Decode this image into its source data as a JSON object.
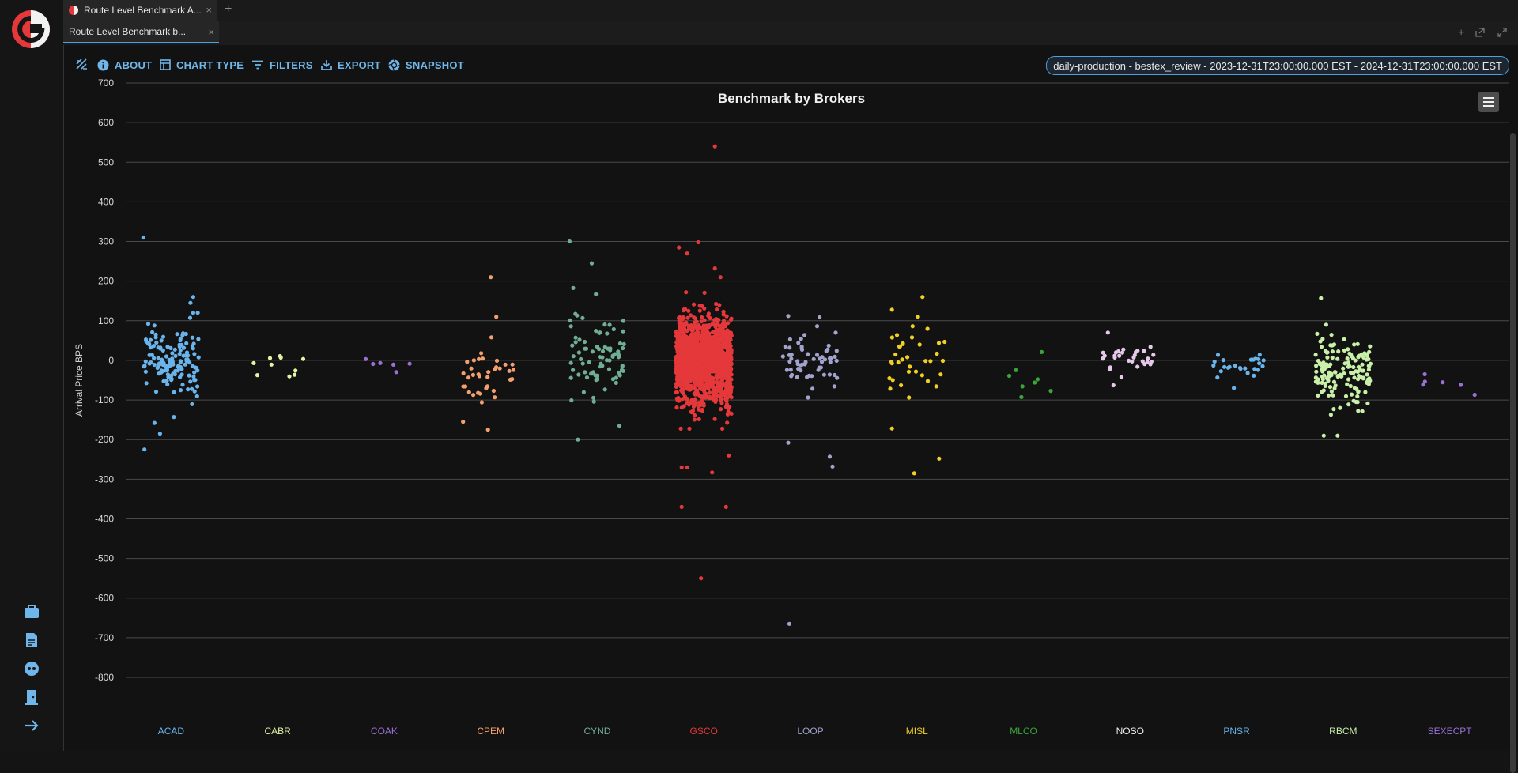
{
  "window": {
    "tab_title": "Route Level Benchmark A...",
    "subtab_title": "Route Level Benchmark b...",
    "close_glyph": "×",
    "add_glyph": "+"
  },
  "toolbar": {
    "about_label": "ABOUT",
    "chart_type_label": "CHART TYPE",
    "filters_label": "FILTERS",
    "export_label": "EXPORT",
    "snapshot_label": "SNAPSHOT",
    "context": "daily-production - bestex_review - 2023-12-31T23:00:00.000 EST - 2024-12-31T23:00:00.000 EST"
  },
  "sidebar": {
    "items": [
      "briefcase-icon",
      "report-icon",
      "support-icon",
      "exit-icon",
      "expand-arrow-icon"
    ]
  },
  "colors": {
    "accent": "#4aa3df",
    "logo_red": "#e5383b"
  },
  "chart_data": {
    "type": "scatter",
    "title": "Benchmark by Brokers",
    "xlabel": "",
    "ylabel": "Arrival Price BPS",
    "ylim": [
      -800,
      700
    ],
    "yticks": [
      "700",
      "600",
      "500",
      "400",
      "300",
      "200",
      "100",
      "0",
      "-100",
      "-200",
      "-300",
      "-400",
      "-500",
      "-600",
      "-700",
      "-800"
    ],
    "grid": true,
    "categories": [
      "ACAD",
      "CABR",
      "COAK",
      "CPEM",
      "CYND",
      "GSCO",
      "LOOP",
      "MISL",
      "MLCO",
      "NOSO",
      "PNSR",
      "RBCM",
      "SEXECPT"
    ],
    "series": [
      {
        "name": "ACAD",
        "color": "#6ab4ec",
        "count": 140,
        "mean": 0,
        "spread": 65,
        "extra": [
          {
            "x": -0.5,
            "y": 310
          },
          {
            "x": -0.48,
            "y": -225
          },
          {
            "x": -0.2,
            "y": -185
          },
          {
            "x": 0.4,
            "y": 160
          },
          {
            "x": 0.35,
            "y": 145
          },
          {
            "x": -0.3,
            "y": -158
          },
          {
            "x": 0.05,
            "y": -143
          },
          {
            "x": 0.4,
            "y": 120
          }
        ]
      },
      {
        "name": "CABR",
        "color": "#e2f5a5",
        "count": 10,
        "mean": -5,
        "spread": 30,
        "extra": []
      },
      {
        "name": "COAK",
        "color": "#9a6fd6",
        "count": 6,
        "mean": -10,
        "spread": 20,
        "extra": []
      },
      {
        "name": "CPEM",
        "color": "#f4a06e",
        "count": 35,
        "mean": -40,
        "spread": 55,
        "extra": [
          {
            "x": 0.0,
            "y": 210
          },
          {
            "x": 0.1,
            "y": 110
          },
          {
            "x": -0.05,
            "y": -175
          },
          {
            "x": -0.5,
            "y": -155
          }
        ]
      },
      {
        "name": "CYND",
        "color": "#6fae94",
        "count": 80,
        "mean": 10,
        "spread": 75,
        "extra": [
          {
            "x": -0.5,
            "y": 300
          },
          {
            "x": -0.35,
            "y": -200
          },
          {
            "x": 0.4,
            "y": -165
          },
          {
            "x": -0.1,
            "y": 245
          }
        ]
      },
      {
        "name": "GSCO",
        "color": "#e5383b",
        "count": 1500,
        "mean": 0,
        "spread": 75,
        "extra": [
          {
            "x": 0.2,
            "y": 540
          },
          {
            "x": -0.4,
            "y": -370
          },
          {
            "x": 0.4,
            "y": -370
          },
          {
            "x": -0.05,
            "y": -550
          },
          {
            "x": -0.45,
            "y": 285
          },
          {
            "x": -0.3,
            "y": 270
          },
          {
            "x": -0.1,
            "y": 298
          },
          {
            "x": 0.2,
            "y": 232
          },
          {
            "x": 0.3,
            "y": 210
          },
          {
            "x": -0.4,
            "y": -270
          },
          {
            "x": -0.3,
            "y": -270
          },
          {
            "x": 0.15,
            "y": -283
          },
          {
            "x": 0.45,
            "y": -240
          }
        ]
      },
      {
        "name": "LOOP",
        "color": "#a1a3cc",
        "count": 60,
        "mean": 5,
        "spread": 45,
        "extra": [
          {
            "x": -0.38,
            "y": -665
          },
          {
            "x": -0.4,
            "y": -208
          },
          {
            "x": 0.35,
            "y": -243
          },
          {
            "x": 0.4,
            "y": -268
          },
          {
            "x": -0.4,
            "y": 112
          }
        ]
      },
      {
        "name": "MISL",
        "color": "#f1cf23",
        "count": 35,
        "mean": 0,
        "spread": 60,
        "extra": [
          {
            "x": -0.45,
            "y": 128
          },
          {
            "x": 0.1,
            "y": 160
          },
          {
            "x": -0.05,
            "y": -285
          },
          {
            "x": 0.4,
            "y": -248
          },
          {
            "x": -0.45,
            "y": -172
          }
        ]
      },
      {
        "name": "MLCO",
        "color": "#3aa53a",
        "count": 8,
        "mean": -50,
        "spread": 60,
        "extra": []
      },
      {
        "name": "NOSO",
        "color": "#e7c9ea",
        "count": 30,
        "mean": 10,
        "spread": 25,
        "extra": [
          {
            "x": -0.3,
            "y": -63
          },
          {
            "x": -0.4,
            "y": 70
          }
        ]
      },
      {
        "name": "PNSR",
        "color": "#6ab4ec",
        "count": 25,
        "mean": -15,
        "spread": 22,
        "extra": [
          {
            "x": -0.05,
            "y": -70
          }
        ]
      },
      {
        "name": "RBCM",
        "color": "#c8f0a8",
        "count": 150,
        "mean": -30,
        "spread": 60,
        "extra": [
          {
            "x": -0.4,
            "y": 157
          },
          {
            "x": -0.35,
            "y": -190
          },
          {
            "x": -0.1,
            "y": -190
          }
        ]
      },
      {
        "name": "SEXECPT",
        "color": "#9a6fd6",
        "count": 3,
        "mean": -55,
        "spread": 20,
        "extra": [
          {
            "x": -0.45,
            "y": -35
          },
          {
            "x": 0.2,
            "y": -62
          },
          {
            "x": 0.45,
            "y": -87
          }
        ]
      }
    ]
  }
}
